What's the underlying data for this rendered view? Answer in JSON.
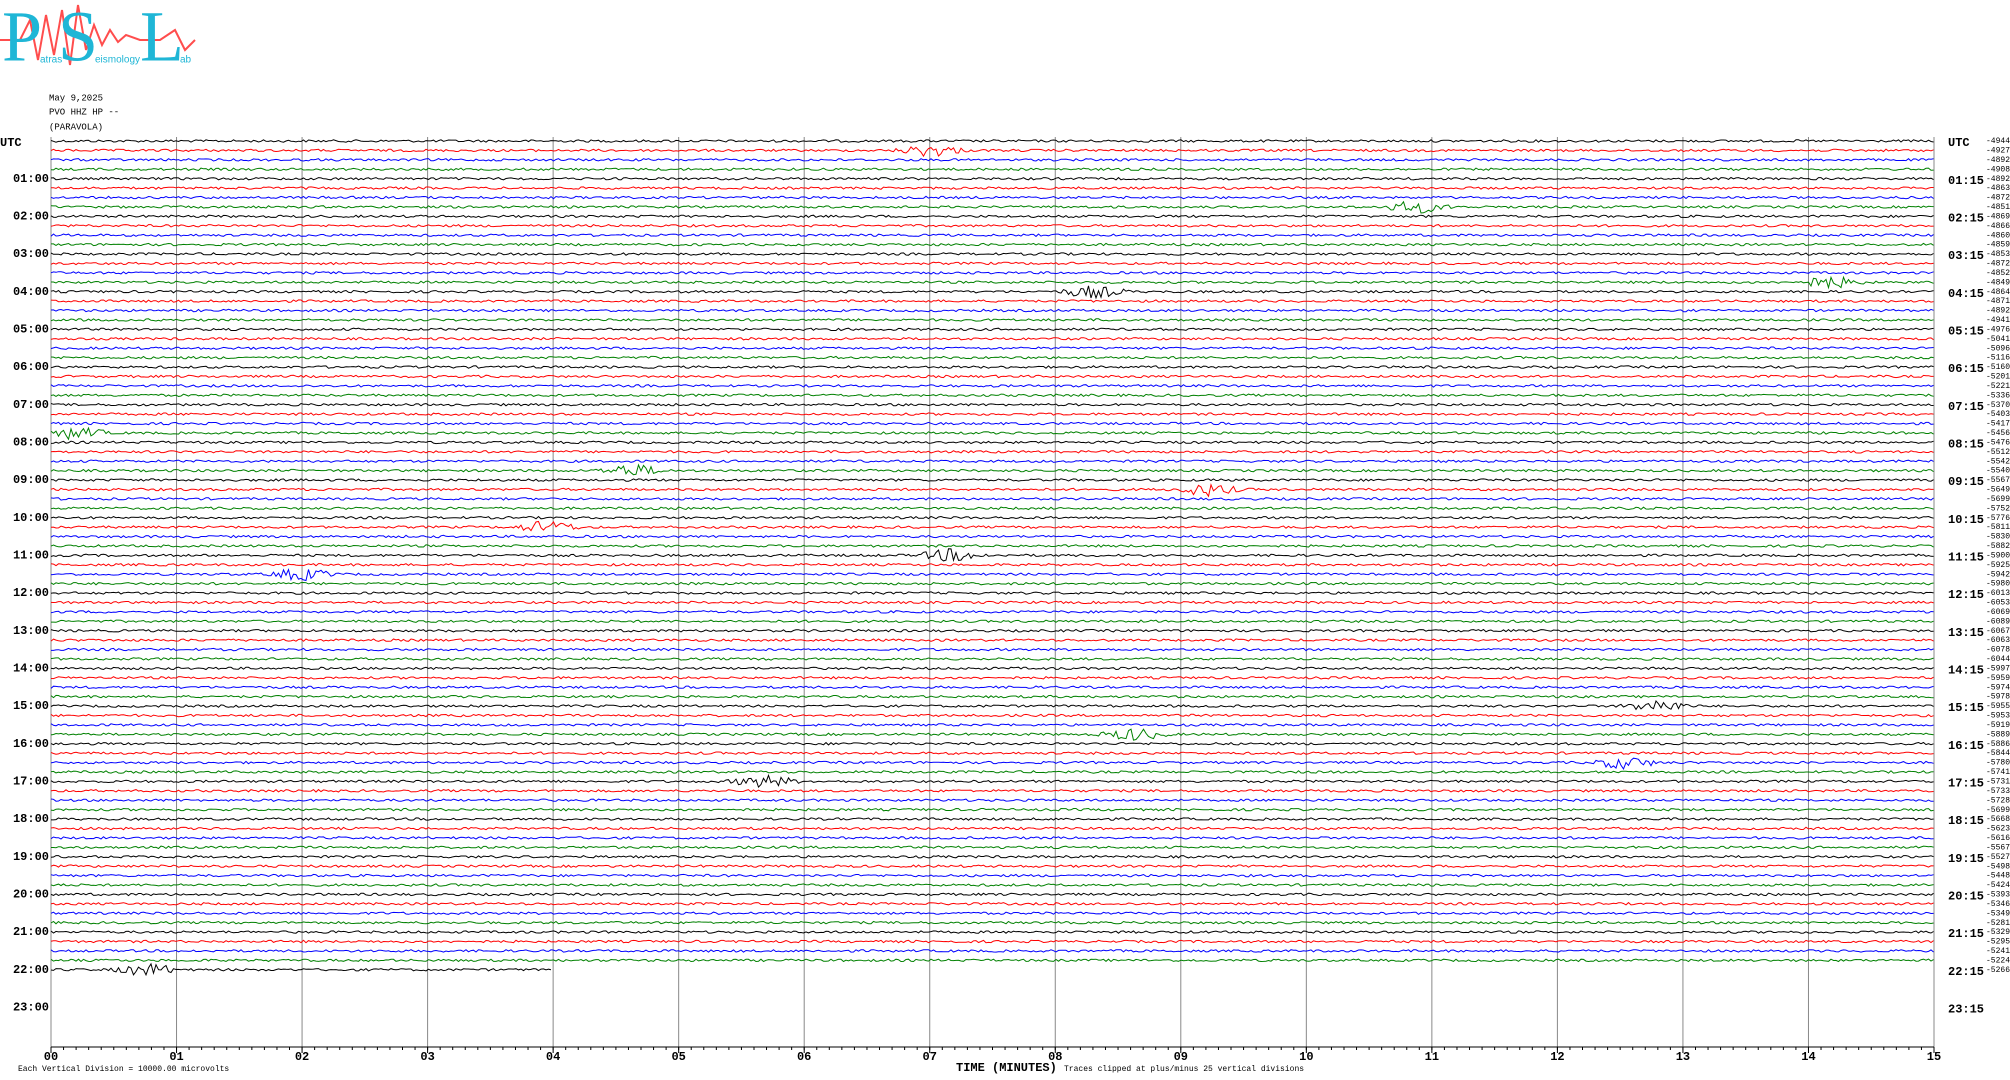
{
  "logo": {
    "letters": [
      "P",
      "S",
      "L"
    ],
    "words": [
      "atras",
      "eismology",
      "ab"
    ]
  },
  "header": {
    "date": "May 9,2025",
    "station": "PVO HHZ HP --",
    "location": "(PARAVOLA)"
  },
  "chart_data": {
    "type": "helicorder",
    "left_labels": [
      "UTC",
      "01:00",
      "02:00",
      "03:00",
      "04:00",
      "05:00",
      "06:00",
      "07:00",
      "08:00",
      "09:00",
      "10:00",
      "11:00",
      "12:00",
      "13:00",
      "14:00",
      "15:00",
      "16:00",
      "17:00",
      "18:00",
      "19:00",
      "20:00",
      "21:00",
      "22:00",
      "23:00"
    ],
    "right_labels": [
      "UTC",
      "01:15",
      "02:15",
      "03:15",
      "04:15",
      "05:15",
      "06:15",
      "07:15",
      "08:15",
      "09:15",
      "10:15",
      "11:15",
      "12:15",
      "13:15",
      "14:15",
      "15:15",
      "16:15",
      "17:15",
      "18:15",
      "19:15",
      "20:15",
      "21:15",
      "22:15",
      "23:15"
    ],
    "trace_offsets": [
      -4944,
      -4927,
      -4892,
      -4908,
      -4892,
      -4863,
      -4872,
      -4851,
      -4869,
      -4866,
      -4860,
      -4859,
      -4853,
      -4872,
      -4852,
      -4849,
      -4864,
      -4871,
      -4892,
      -4941,
      -4976,
      -5041,
      -5096,
      -5116,
      -5160,
      -5201,
      -5221,
      -5336,
      -5370,
      -5403,
      -5417,
      -5456,
      -5476,
      -5512,
      -5542,
      -5540,
      -5567,
      -5649,
      -5699,
      -5752,
      -5776,
      -5811,
      -5830,
      -5882,
      -5900,
      -5925,
      -5942,
      -5980,
      -6013,
      -6053,
      -6069,
      -6089,
      -6067,
      -6063,
      -6078,
      -6044,
      -5997,
      -5959,
      -5974,
      -5978,
      -5955,
      -5953,
      -5919,
      -5889,
      -5886,
      -5844,
      -5780,
      -5741,
      -5731,
      -5733,
      -5728,
      -5699,
      -5668,
      -5623,
      -5616,
      -5567,
      -5527,
      -5498,
      -5448,
      -5424,
      -5393,
      -5346,
      -5349,
      -5281,
      -5329,
      -5295,
      -5241,
      -5224,
      -5266
    ],
    "trace_colors": [
      "#000000",
      "#ff0000",
      "#0000ff",
      "#008000"
    ],
    "last_trace_minutes": 4,
    "xlim": [
      0,
      15
    ],
    "xticks": [
      {
        "value": 0,
        "label": "00"
      },
      {
        "value": 1,
        "label": "01"
      },
      {
        "value": 2,
        "label": "02"
      },
      {
        "value": 3,
        "label": "03"
      },
      {
        "value": 4,
        "label": "04"
      },
      {
        "value": 5,
        "label": "05"
      },
      {
        "value": 6,
        "label": "06"
      },
      {
        "value": 7,
        "label": "07"
      },
      {
        "value": 8,
        "label": "08"
      },
      {
        "value": 9,
        "label": "09"
      },
      {
        "value": 10,
        "label": "10"
      },
      {
        "value": 11,
        "label": "11"
      },
      {
        "value": 12,
        "label": "12"
      },
      {
        "value": 13,
        "label": "13"
      },
      {
        "value": 14,
        "label": "14"
      },
      {
        "value": 15,
        "label": "15"
      }
    ],
    "xlabel": "TIME (MINUTES)",
    "footer_left": "Each Vertical Division = 10000.00 microvolts",
    "footer_right": "Traces clipped at plus/minus 25 vertical divisions"
  }
}
